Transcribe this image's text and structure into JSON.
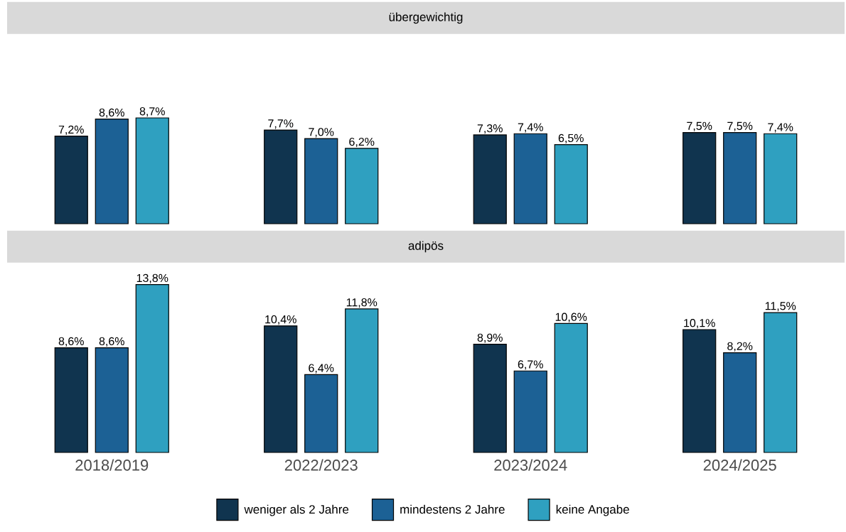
{
  "chart_data": [
    {
      "type": "bar",
      "title": "übergewichtig",
      "categories": [
        null,
        null,
        null,
        null
      ],
      "tick_labels": false,
      "series": [
        {
          "color": "#10344f",
          "values": [
            7.2,
            7.7,
            7.3,
            7.5
          ],
          "value_labels": [
            "7,2%",
            "7,7%",
            "7,3%",
            "7,5%"
          ]
        },
        {
          "color": "#1c6195",
          "values": [
            8.6,
            7.0,
            7.4,
            7.5
          ],
          "value_labels": [
            "8,6%",
            "7,0%",
            "7,4%",
            "7,5%"
          ]
        },
        {
          "color": "#2fa0c0",
          "values": [
            8.7,
            6.2,
            6.5,
            7.4
          ],
          "value_labels": [
            "8,7%",
            "6,2%",
            "6,5%",
            "7,4%"
          ]
        }
      ]
    },
    {
      "type": "bar",
      "title": "adipös",
      "categories": [
        "2018/2019",
        "2022/2023",
        "2023/2024",
        "2024/2025"
      ],
      "tick_labels": "x",
      "legend": "bottom",
      "series": [
        {
          "name": "weniger als 2 Jahre",
          "color": "#10344f",
          "values": [
            8.6,
            10.4,
            8.9,
            10.1
          ],
          "value_labels": [
            "8,6%",
            "10,4%",
            "8,9%",
            "10,1%"
          ]
        },
        {
          "name": "mindestens 2 Jahre",
          "color": "#1c6195",
          "values": [
            8.6,
            6.4,
            6.7,
            8.2
          ],
          "value_labels": [
            "8,6%",
            "6,4%",
            "6,7%",
            "8,2%"
          ]
        },
        {
          "name": "keine Angabe",
          "color": "#2fa0c0",
          "values": [
            13.8,
            11.8,
            10.6,
            11.5
          ],
          "value_labels": [
            "13,8%",
            "11,8%",
            "10,6%",
            "11,5%"
          ]
        }
      ]
    }
  ]
}
